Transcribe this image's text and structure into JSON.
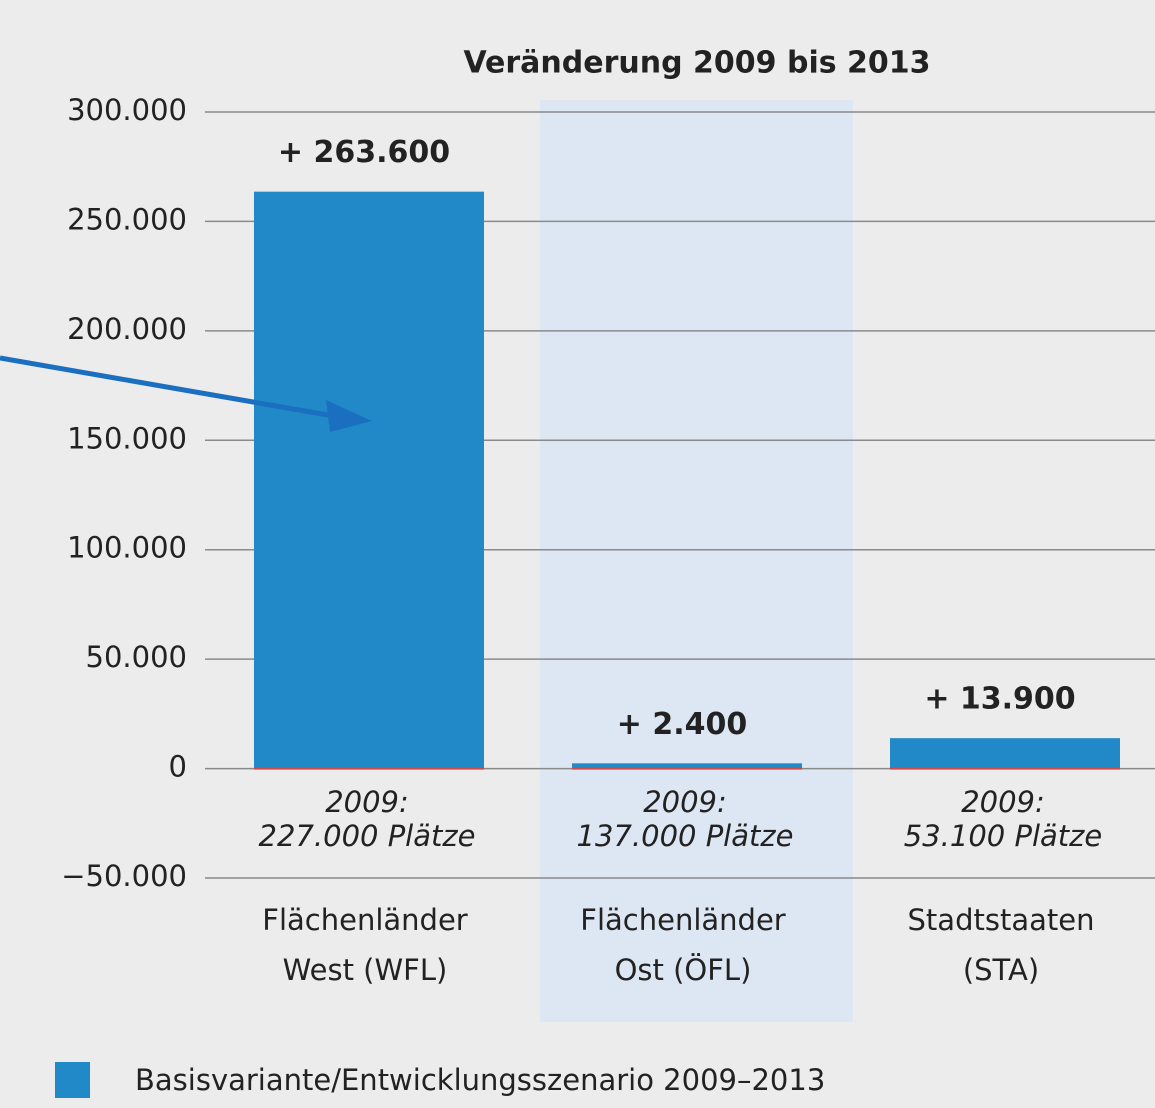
{
  "chart_data": {
    "type": "bar",
    "title": "Veränderung 2009 bis 2013",
    "categories": [
      "Flächenländer\nWest (WFL)",
      "Flächenländer\nOst (ÖFL)",
      "Stadtstaaten\n(STA)"
    ],
    "annotations": [
      "2009:\n227.000 Plätze",
      "2009:\n137.000 Plätze",
      "2009:\n53.100 Plätze"
    ],
    "series": [
      {
        "name": "Basisvariante/Entwicklungsszenario 2009–2013",
        "color": "#2289c8",
        "values": [
          263600,
          2400,
          13900
        ],
        "value_labels": [
          "+ 263.600",
          "+ 2.400",
          "+ 13.900"
        ]
      }
    ],
    "ylim": [
      -50000,
      300000
    ],
    "yticks": [
      {
        "value": -50000,
        "label": "−50.000"
      },
      0,
      {
        "value": 50000,
        "label": "50.000"
      },
      {
        "value": 100000,
        "label": "100.000"
      },
      {
        "value": 150000,
        "label": "150.000"
      },
      {
        "value": 200000,
        "label": "200.000"
      },
      {
        "value": 250000,
        "label": "250.000"
      },
      {
        "value": 300000,
        "label": "300.000"
      }
    ],
    "grid": true,
    "highlight_category": 1,
    "legend": "bottom-left"
  }
}
